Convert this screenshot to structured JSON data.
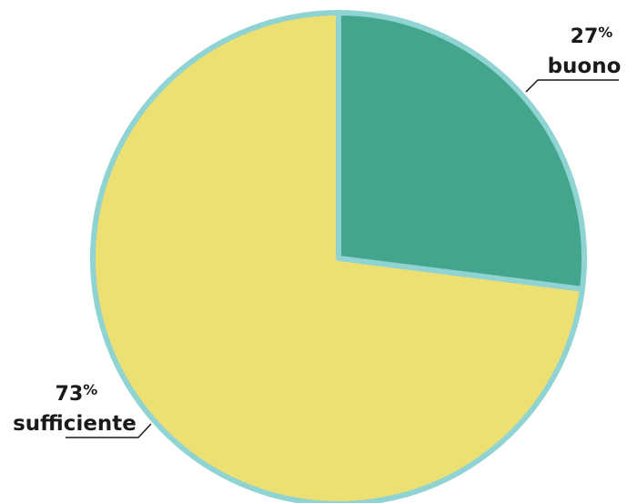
{
  "chart_data": {
    "type": "pie",
    "title": "",
    "start_angle_deg": 0,
    "direction": "clockwise",
    "slices": [
      {
        "label": "buono",
        "value": 27,
        "value_text": "27",
        "unit": "%",
        "color": "#43a58c"
      },
      {
        "label": "sufficiente",
        "value": 73,
        "value_text": "73",
        "unit": "%",
        "color": "#ede072"
      }
    ],
    "stroke_color": "#8fd3d3",
    "leader_color": "#1a1a1a"
  }
}
